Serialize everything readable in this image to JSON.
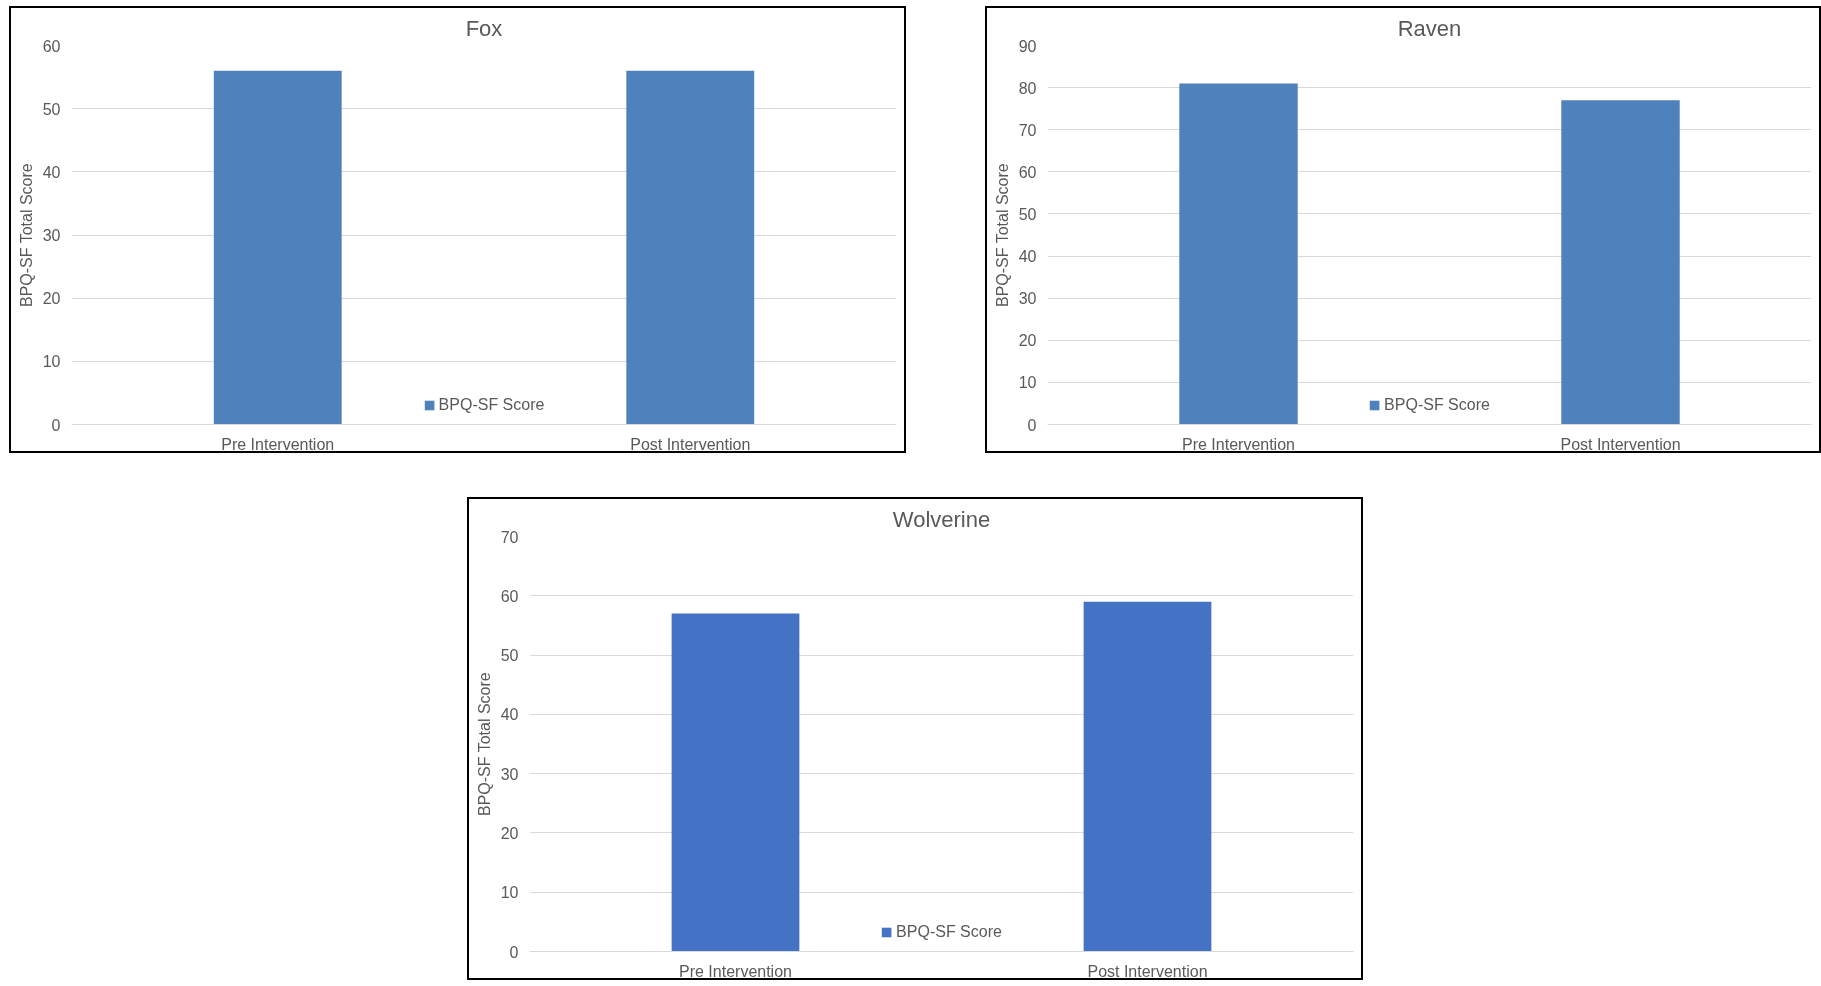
{
  "chart_data": [
    {
      "type": "bar",
      "title": "Fox",
      "ylabel": "BPQ-SF Total Score",
      "categories": [
        "Pre Intervention",
        "Post Intervention"
      ],
      "series": [
        {
          "name": "BPQ-SF Score",
          "color": "#4f81bd",
          "values": [
            56,
            56
          ]
        }
      ],
      "ylim": [
        0,
        60
      ],
      "yticks": [
        0,
        10,
        20,
        30,
        40,
        50,
        60
      ],
      "grid": "y",
      "legend": "bottom"
    },
    {
      "type": "bar",
      "title": "Raven",
      "ylabel": "BPQ-SF Total Score",
      "categories": [
        "Pre Intervention",
        "Post Intervention"
      ],
      "series": [
        {
          "name": "BPQ-SF Score",
          "color": "#4f81bd",
          "values": [
            81,
            77
          ]
        }
      ],
      "ylim": [
        0,
        90
      ],
      "yticks": [
        0,
        10,
        20,
        30,
        40,
        50,
        60,
        70,
        80,
        90
      ],
      "grid": "y",
      "legend": "bottom"
    },
    {
      "type": "bar",
      "title": "Wolverine",
      "ylabel": "BPQ-SF Total Score",
      "categories": [
        "Pre Intervention",
        "Post Intervention"
      ],
      "series": [
        {
          "name": "BPQ-SF Score",
          "color": "#4472c4",
          "values": [
            57,
            59
          ]
        }
      ],
      "ylim": [
        0,
        70
      ],
      "yticks": [
        0,
        10,
        20,
        30,
        40,
        50,
        60,
        70
      ],
      "grid": "y",
      "legend": "bottom"
    }
  ]
}
